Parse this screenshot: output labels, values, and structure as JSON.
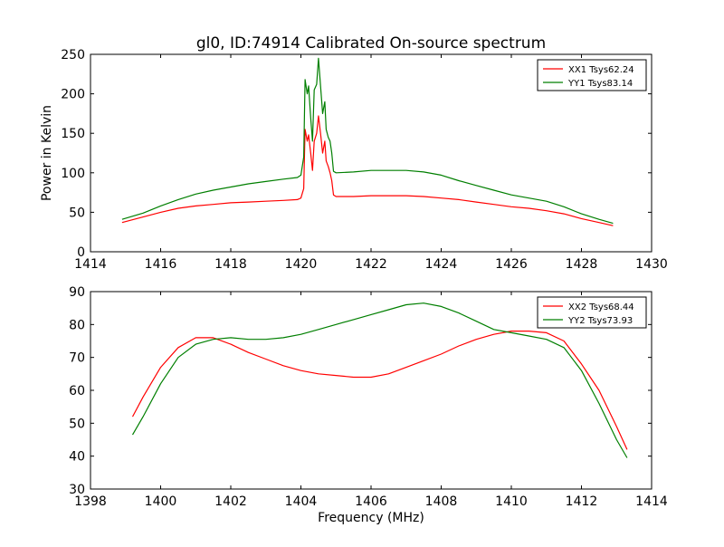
{
  "figure": {
    "title": "gl0, ID:74914 Calibrated On-source spectrum",
    "ylabel": "Power in Kelvin",
    "xlabel": "Frequency (MHz)"
  },
  "colors": {
    "red": "#ff0000",
    "green": "#007f00"
  },
  "chart_data": [
    {
      "type": "line",
      "xlim": [
        1414,
        1430
      ],
      "ylim": [
        0,
        250
      ],
      "xticks": [
        1414,
        1416,
        1418,
        1420,
        1422,
        1424,
        1426,
        1428,
        1430
      ],
      "yticks": [
        0,
        50,
        100,
        150,
        200,
        250
      ],
      "legend_position": "top-right",
      "series": [
        {
          "name": "XX1 Tsys62.24",
          "color": "#ff0000",
          "points": [
            [
              1414.9,
              37
            ],
            [
              1415.5,
              44
            ],
            [
              1416,
              50
            ],
            [
              1416.5,
              55
            ],
            [
              1417,
              58
            ],
            [
              1417.5,
              60
            ],
            [
              1418,
              62
            ],
            [
              1418.5,
              63
            ],
            [
              1419,
              64
            ],
            [
              1419.5,
              65
            ],
            [
              1419.9,
              66
            ],
            [
              1420.0,
              68
            ],
            [
              1420.08,
              80
            ],
            [
              1420.12,
              155
            ],
            [
              1420.18,
              140
            ],
            [
              1420.22,
              148
            ],
            [
              1420.28,
              125
            ],
            [
              1420.33,
              103
            ],
            [
              1420.38,
              140
            ],
            [
              1420.45,
              150
            ],
            [
              1420.5,
              172
            ],
            [
              1420.56,
              150
            ],
            [
              1420.62,
              125
            ],
            [
              1420.68,
              140
            ],
            [
              1420.72,
              115
            ],
            [
              1420.78,
              108
            ],
            [
              1420.83,
              100
            ],
            [
              1420.88,
              90
            ],
            [
              1420.93,
              72
            ],
            [
              1421.0,
              70
            ],
            [
              1421.5,
              70
            ],
            [
              1422,
              71
            ],
            [
              1422.5,
              71
            ],
            [
              1423,
              71
            ],
            [
              1423.5,
              70
            ],
            [
              1424,
              68
            ],
            [
              1424.5,
              66
            ],
            [
              1425,
              63
            ],
            [
              1425.5,
              60
            ],
            [
              1426,
              57
            ],
            [
              1426.5,
              55
            ],
            [
              1427,
              52
            ],
            [
              1427.5,
              48
            ],
            [
              1428,
              42
            ],
            [
              1428.5,
              37
            ],
            [
              1428.9,
              33
            ]
          ]
        },
        {
          "name": "YY1 Tsys83.14",
          "color": "#007f00",
          "points": [
            [
              1414.9,
              41
            ],
            [
              1415.5,
              49
            ],
            [
              1416,
              58
            ],
            [
              1416.5,
              66
            ],
            [
              1417,
              73
            ],
            [
              1417.5,
              78
            ],
            [
              1418,
              82
            ],
            [
              1418.5,
              86
            ],
            [
              1419,
              89
            ],
            [
              1419.5,
              92
            ],
            [
              1419.9,
              94
            ],
            [
              1420.0,
              97
            ],
            [
              1420.08,
              120
            ],
            [
              1420.12,
              218
            ],
            [
              1420.18,
              200
            ],
            [
              1420.22,
              210
            ],
            [
              1420.28,
              170
            ],
            [
              1420.33,
              140
            ],
            [
              1420.38,
              205
            ],
            [
              1420.45,
              212
            ],
            [
              1420.5,
              245
            ],
            [
              1420.56,
              210
            ],
            [
              1420.62,
              175
            ],
            [
              1420.68,
              190
            ],
            [
              1420.72,
              155
            ],
            [
              1420.78,
              145
            ],
            [
              1420.83,
              140
            ],
            [
              1420.88,
              125
            ],
            [
              1420.93,
              102
            ],
            [
              1421.0,
              100
            ],
            [
              1421.5,
              101
            ],
            [
              1422,
              103
            ],
            [
              1422.5,
              103
            ],
            [
              1423,
              103
            ],
            [
              1423.5,
              101
            ],
            [
              1424,
              97
            ],
            [
              1424.5,
              90
            ],
            [
              1425,
              84
            ],
            [
              1425.5,
              78
            ],
            [
              1426,
              72
            ],
            [
              1426.5,
              68
            ],
            [
              1427,
              64
            ],
            [
              1427.5,
              57
            ],
            [
              1428,
              48
            ],
            [
              1428.5,
              41
            ],
            [
              1428.9,
              36
            ]
          ]
        }
      ]
    },
    {
      "type": "line",
      "xlim": [
        1398,
        1414
      ],
      "ylim": [
        30,
        90
      ],
      "xticks": [
        1398,
        1400,
        1402,
        1404,
        1406,
        1408,
        1410,
        1412,
        1414
      ],
      "yticks": [
        30,
        40,
        50,
        60,
        70,
        80,
        90
      ],
      "legend_position": "top-right",
      "series": [
        {
          "name": "XX2 Tsys68.44",
          "color": "#ff0000",
          "points": [
            [
              1399.2,
              52
            ],
            [
              1399.5,
              58
            ],
            [
              1400,
              67
            ],
            [
              1400.5,
              73
            ],
            [
              1401,
              76
            ],
            [
              1401.5,
              76
            ],
            [
              1402,
              74
            ],
            [
              1402.5,
              71.5
            ],
            [
              1403,
              69.5
            ],
            [
              1403.5,
              67.5
            ],
            [
              1404,
              66
            ],
            [
              1404.5,
              65
            ],
            [
              1405,
              64.5
            ],
            [
              1405.5,
              64
            ],
            [
              1406,
              64
            ],
            [
              1406.5,
              65
            ],
            [
              1407,
              67
            ],
            [
              1407.5,
              69
            ],
            [
              1408,
              71
            ],
            [
              1408.5,
              73.5
            ],
            [
              1409,
              75.5
            ],
            [
              1409.5,
              77
            ],
            [
              1410,
              78
            ],
            [
              1410.5,
              78
            ],
            [
              1411,
              77.5
            ],
            [
              1411.5,
              75
            ],
            [
              1412,
              68
            ],
            [
              1412.5,
              60
            ],
            [
              1413,
              49
            ],
            [
              1413.3,
              42
            ]
          ]
        },
        {
          "name": "YY2 Tsys73.93",
          "color": "#007f00",
          "points": [
            [
              1399.2,
              46.5
            ],
            [
              1399.5,
              52
            ],
            [
              1400,
              62
            ],
            [
              1400.5,
              70
            ],
            [
              1401,
              74
            ],
            [
              1401.5,
              75.5
            ],
            [
              1402,
              76
            ],
            [
              1402.5,
              75.5
            ],
            [
              1403,
              75.5
            ],
            [
              1403.5,
              76
            ],
            [
              1404,
              77
            ],
            [
              1404.5,
              78.5
            ],
            [
              1405,
              80
            ],
            [
              1405.5,
              81.5
            ],
            [
              1406,
              83
            ],
            [
              1406.5,
              84.5
            ],
            [
              1407,
              86
            ],
            [
              1407.5,
              86.5
            ],
            [
              1408,
              85.5
            ],
            [
              1408.5,
              83.5
            ],
            [
              1409,
              81
            ],
            [
              1409.5,
              78.5
            ],
            [
              1410,
              77.5
            ],
            [
              1410.5,
              76.5
            ],
            [
              1411,
              75.5
            ],
            [
              1411.5,
              73
            ],
            [
              1412,
              66
            ],
            [
              1412.5,
              56
            ],
            [
              1413,
              45
            ],
            [
              1413.3,
              39.5
            ]
          ]
        }
      ]
    }
  ]
}
